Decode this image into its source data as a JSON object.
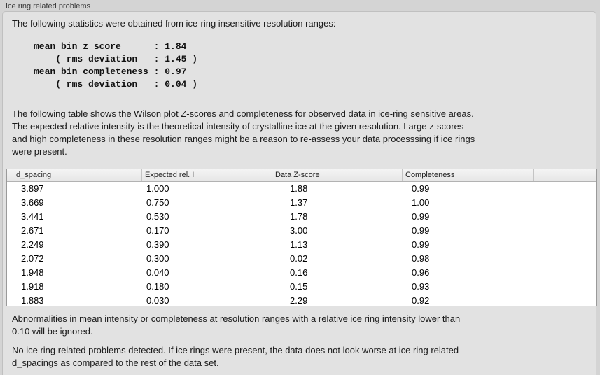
{
  "panel": {
    "title": "Ice ring related problems"
  },
  "content": {
    "stats_intro": "The following statistics were obtained from ice-ring insensitive resolution ranges:",
    "stats_block": "mean bin z_score      : 1.84\n    ( rms deviation   : 1.45 )\nmean bin completeness : 0.97\n    ( rms deviation   : 0.04 )",
    "table_description": "The following table shows the Wilson plot Z-scores and completeness for observed data in ice-ring sensitive areas.\nThe expected relative intensity is the theoretical intensity of crystalline ice at the given resolution. Large z-scores\nand high completeness in these resolution ranges might be a reason to re-assess your data processsing if ice rings\nwere present.",
    "ignore_note": "Abnormalities in mean intensity or completeness at resolution ranges with a relative ice ring intensity lower than\n0.10 will be ignored.",
    "conclusion": "No ice ring related problems detected. If ice rings were present, the data does not look worse at ice ring related\nd_spacings as compared to the rest of the data set."
  },
  "table": {
    "headers": [
      "d_spacing",
      "Expected rel. I",
      "Data Z-score",
      "Completeness"
    ],
    "rows": [
      [
        "3.897",
        "1.000",
        "1.88",
        "0.99"
      ],
      [
        "3.669",
        "0.750",
        "1.37",
        "1.00"
      ],
      [
        "3.441",
        "0.530",
        "1.78",
        "0.99"
      ],
      [
        "2.671",
        "0.170",
        "3.00",
        "0.99"
      ],
      [
        "2.249",
        "0.390",
        "1.13",
        "0.99"
      ],
      [
        "2.072",
        "0.300",
        "0.02",
        "0.98"
      ],
      [
        "1.948",
        "0.040",
        "0.16",
        "0.96"
      ],
      [
        "1.918",
        "0.180",
        "0.15",
        "0.93"
      ],
      [
        "1.883",
        "0.030",
        "2.29",
        "0.92"
      ]
    ]
  },
  "colors": {
    "page_background": "#d4d4d4",
    "groupbox_background": "#e2e2e2",
    "table_background": "#ffffff",
    "text": "#1a1a1a"
  }
}
